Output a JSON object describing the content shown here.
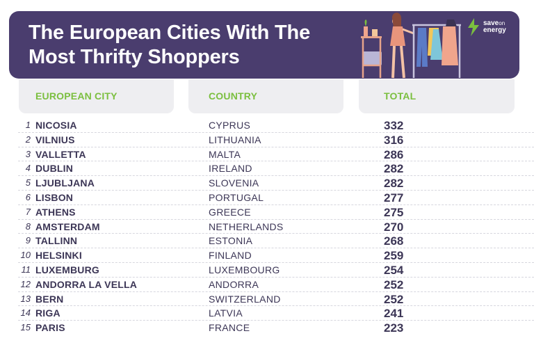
{
  "title": {
    "line1": "The European Cities With The",
    "line2": "Most Thrifty Shoppers"
  },
  "logo": {
    "line1": "save",
    "line1b": "on",
    "line2": "energy"
  },
  "headers": {
    "city": "EUROPEAN CITY",
    "country": "COUNTRY",
    "total": "TOTAL"
  },
  "colors": {
    "banner": "#4a3d6e",
    "header_text": "#7bbf3f",
    "header_bg": "#eeeef1",
    "body_text": "#3c3656"
  },
  "rows": [
    {
      "rank": "1",
      "city": "NICOSIA",
      "country": "CYPRUS",
      "total": "332"
    },
    {
      "rank": "2",
      "city": "VILNIUS",
      "country": "LITHUANIA",
      "total": "316"
    },
    {
      "rank": "3",
      "city": "VALLETTA",
      "country": "MALTA",
      "total": "286"
    },
    {
      "rank": "4",
      "city": "DUBLIN",
      "country": "IRELAND",
      "total": "282"
    },
    {
      "rank": "5",
      "city": "LJUBLJANA",
      "country": "SLOVENIA",
      "total": "282"
    },
    {
      "rank": "6",
      "city": "LISBON",
      "country": "PORTUGAL",
      "total": "277"
    },
    {
      "rank": "7",
      "city": "ATHENS",
      "country": "GREECE",
      "total": "275"
    },
    {
      "rank": "8",
      "city": "AMSTERDAM",
      "country": "NETHERLANDS",
      "total": "270"
    },
    {
      "rank": "9",
      "city": "TALLINN",
      "country": "ESTONIA",
      "total": "268"
    },
    {
      "rank": "10",
      "city": "HELSINKI",
      "country": "FINLAND",
      "total": "259"
    },
    {
      "rank": "11",
      "city": "LUXEMBURG",
      "country": "LUXEMBOURG",
      "total": "254"
    },
    {
      "rank": "12",
      "city": "ANDORRA LA VELLA",
      "country": "ANDORRA",
      "total": "252"
    },
    {
      "rank": "13",
      "city": "BERN",
      "country": "SWITZERLAND",
      "total": "252"
    },
    {
      "rank": "14",
      "city": "RIGA",
      "country": "LATVIA",
      "total": "241"
    },
    {
      "rank": "15",
      "city": "PARIS",
      "country": "FRANCE",
      "total": "223"
    }
  ]
}
